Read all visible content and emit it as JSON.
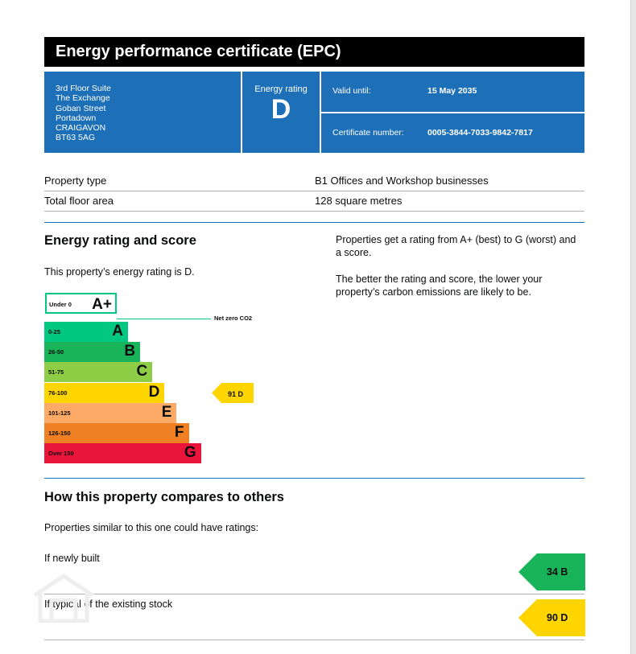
{
  "header": {
    "title": "Energy performance certificate (EPC)"
  },
  "address": [
    "3rd Floor Suite",
    "The Exchange",
    "Goban Street",
    "Portadown",
    "CRAIGAVON",
    "BT63 5AG"
  ],
  "energy_rating": {
    "label": "Energy rating",
    "value": "D"
  },
  "valid_until": {
    "label": "Valid until:",
    "value": "15 May 2035"
  },
  "certificate": {
    "label": "Certificate number:",
    "value": "0005-3844-7033-9842-7817"
  },
  "property": {
    "type_label": "Property type",
    "type_value": "B1 Offices and Workshop businesses",
    "area_label": "Total floor area",
    "area_value": "128 square metres"
  },
  "rating_section": {
    "heading": "Energy rating and score",
    "statement": "This property’s energy rating is D.",
    "explain1": "Properties get a rating from A+ (best) to G (worst) and a score.",
    "explain2": "The better the rating and score, the lower your property’s carbon emissions are likely to be."
  },
  "scale": {
    "aplus": {
      "range": "Under 0",
      "letter": "A+",
      "color": "#00c781"
    },
    "net_zero_label": "Net zero CO2",
    "bands": [
      {
        "range": "0-25",
        "letter": "A",
        "color": "#00c781"
      },
      {
        "range": "26-50",
        "letter": "B",
        "color": "#19b459"
      },
      {
        "range": "51-75",
        "letter": "C",
        "color": "#8dce46"
      },
      {
        "range": "76-100",
        "letter": "D",
        "color": "#ffd500"
      },
      {
        "range": "101-125",
        "letter": "E",
        "color": "#fcaa65"
      },
      {
        "range": "126-150",
        "letter": "F",
        "color": "#ef8023"
      },
      {
        "range": "Over 150",
        "letter": "G",
        "color": "#e9153b"
      }
    ],
    "current": {
      "label": "91 D",
      "score": 91,
      "band": "D",
      "color": "#ffd500"
    }
  },
  "compare": {
    "heading": "How this property compares to others",
    "intro": "Properties similar to this one could have ratings:",
    "rows": [
      {
        "label": "If newly built",
        "value": "34 B",
        "score": 34,
        "band": "B",
        "color": "#19b459"
      },
      {
        "label": "If typical of the existing stock",
        "value": "90 D",
        "score": 90,
        "band": "D",
        "color": "#ffd500"
      }
    ]
  }
}
